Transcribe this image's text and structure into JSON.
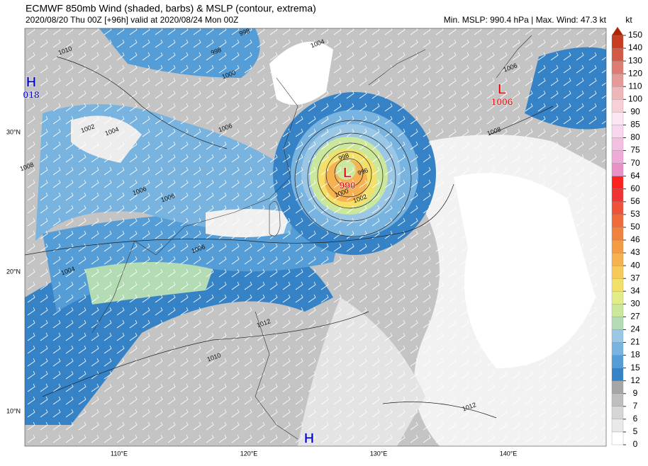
{
  "header": {
    "title": "ECMWF 850mb Wind (shaded, barbs) & MSLP (contour, extrema)",
    "subtitle": "2020/08/20 Thu 00Z [+96h] valid at 2020/08/24 Mon 00Z",
    "stats": "Min. MSLP: 990.4 hPa | Max. Wind: 47.3 kt"
  },
  "colorbar": {
    "unit": "kt",
    "levels": [
      0,
      5,
      6,
      7,
      9,
      12,
      15,
      18,
      21,
      24,
      27,
      30,
      34,
      37,
      40,
      43,
      46,
      50,
      53,
      56,
      60,
      64,
      70,
      75,
      80,
      85,
      90,
      100,
      110,
      120,
      130,
      140,
      150
    ],
    "colors": [
      "#ffffff",
      "#e9e9e9",
      "#d6d6d6",
      "#bebebe",
      "#a6a6a6",
      "#3583c6",
      "#559dd6",
      "#78b4df",
      "#9ac7e5",
      "#b4dcb4",
      "#cbe79c",
      "#e2ed88",
      "#f3e068",
      "#f7c95a",
      "#f6b150",
      "#f49b45",
      "#f08240",
      "#f06b3c",
      "#ee5238",
      "#f03434",
      "#ff2020",
      "#e892c8",
      "#f0aad8",
      "#f4c0e2",
      "#f8d6ee",
      "#fce6f4",
      "#f6d0d6",
      "#eeb6b8",
      "#e69a98",
      "#de7c74",
      "#d45a48",
      "#c83c20",
      "#b02400"
    ]
  },
  "axes": {
    "lat": [
      "30°N",
      "20°N",
      "10°N"
    ],
    "lon": [
      "110°E",
      "120°E",
      "130°E",
      "140°E"
    ]
  },
  "extrema": [
    {
      "letter": "H",
      "value": "018"
    },
    {
      "letter": "L",
      "value": "990"
    },
    {
      "letter": "L",
      "value": "1006"
    },
    {
      "letter": "H"
    }
  ],
  "contour_labels": [
    "998",
    "1000",
    "998",
    "1004",
    "1010",
    "1002",
    "1004",
    "1006",
    "1006",
    "1006",
    "1004",
    "1006",
    "998",
    "1000",
    "1002",
    "996",
    "1008",
    "1006",
    "1010",
    "1012",
    "1012",
    "1008"
  ]
}
